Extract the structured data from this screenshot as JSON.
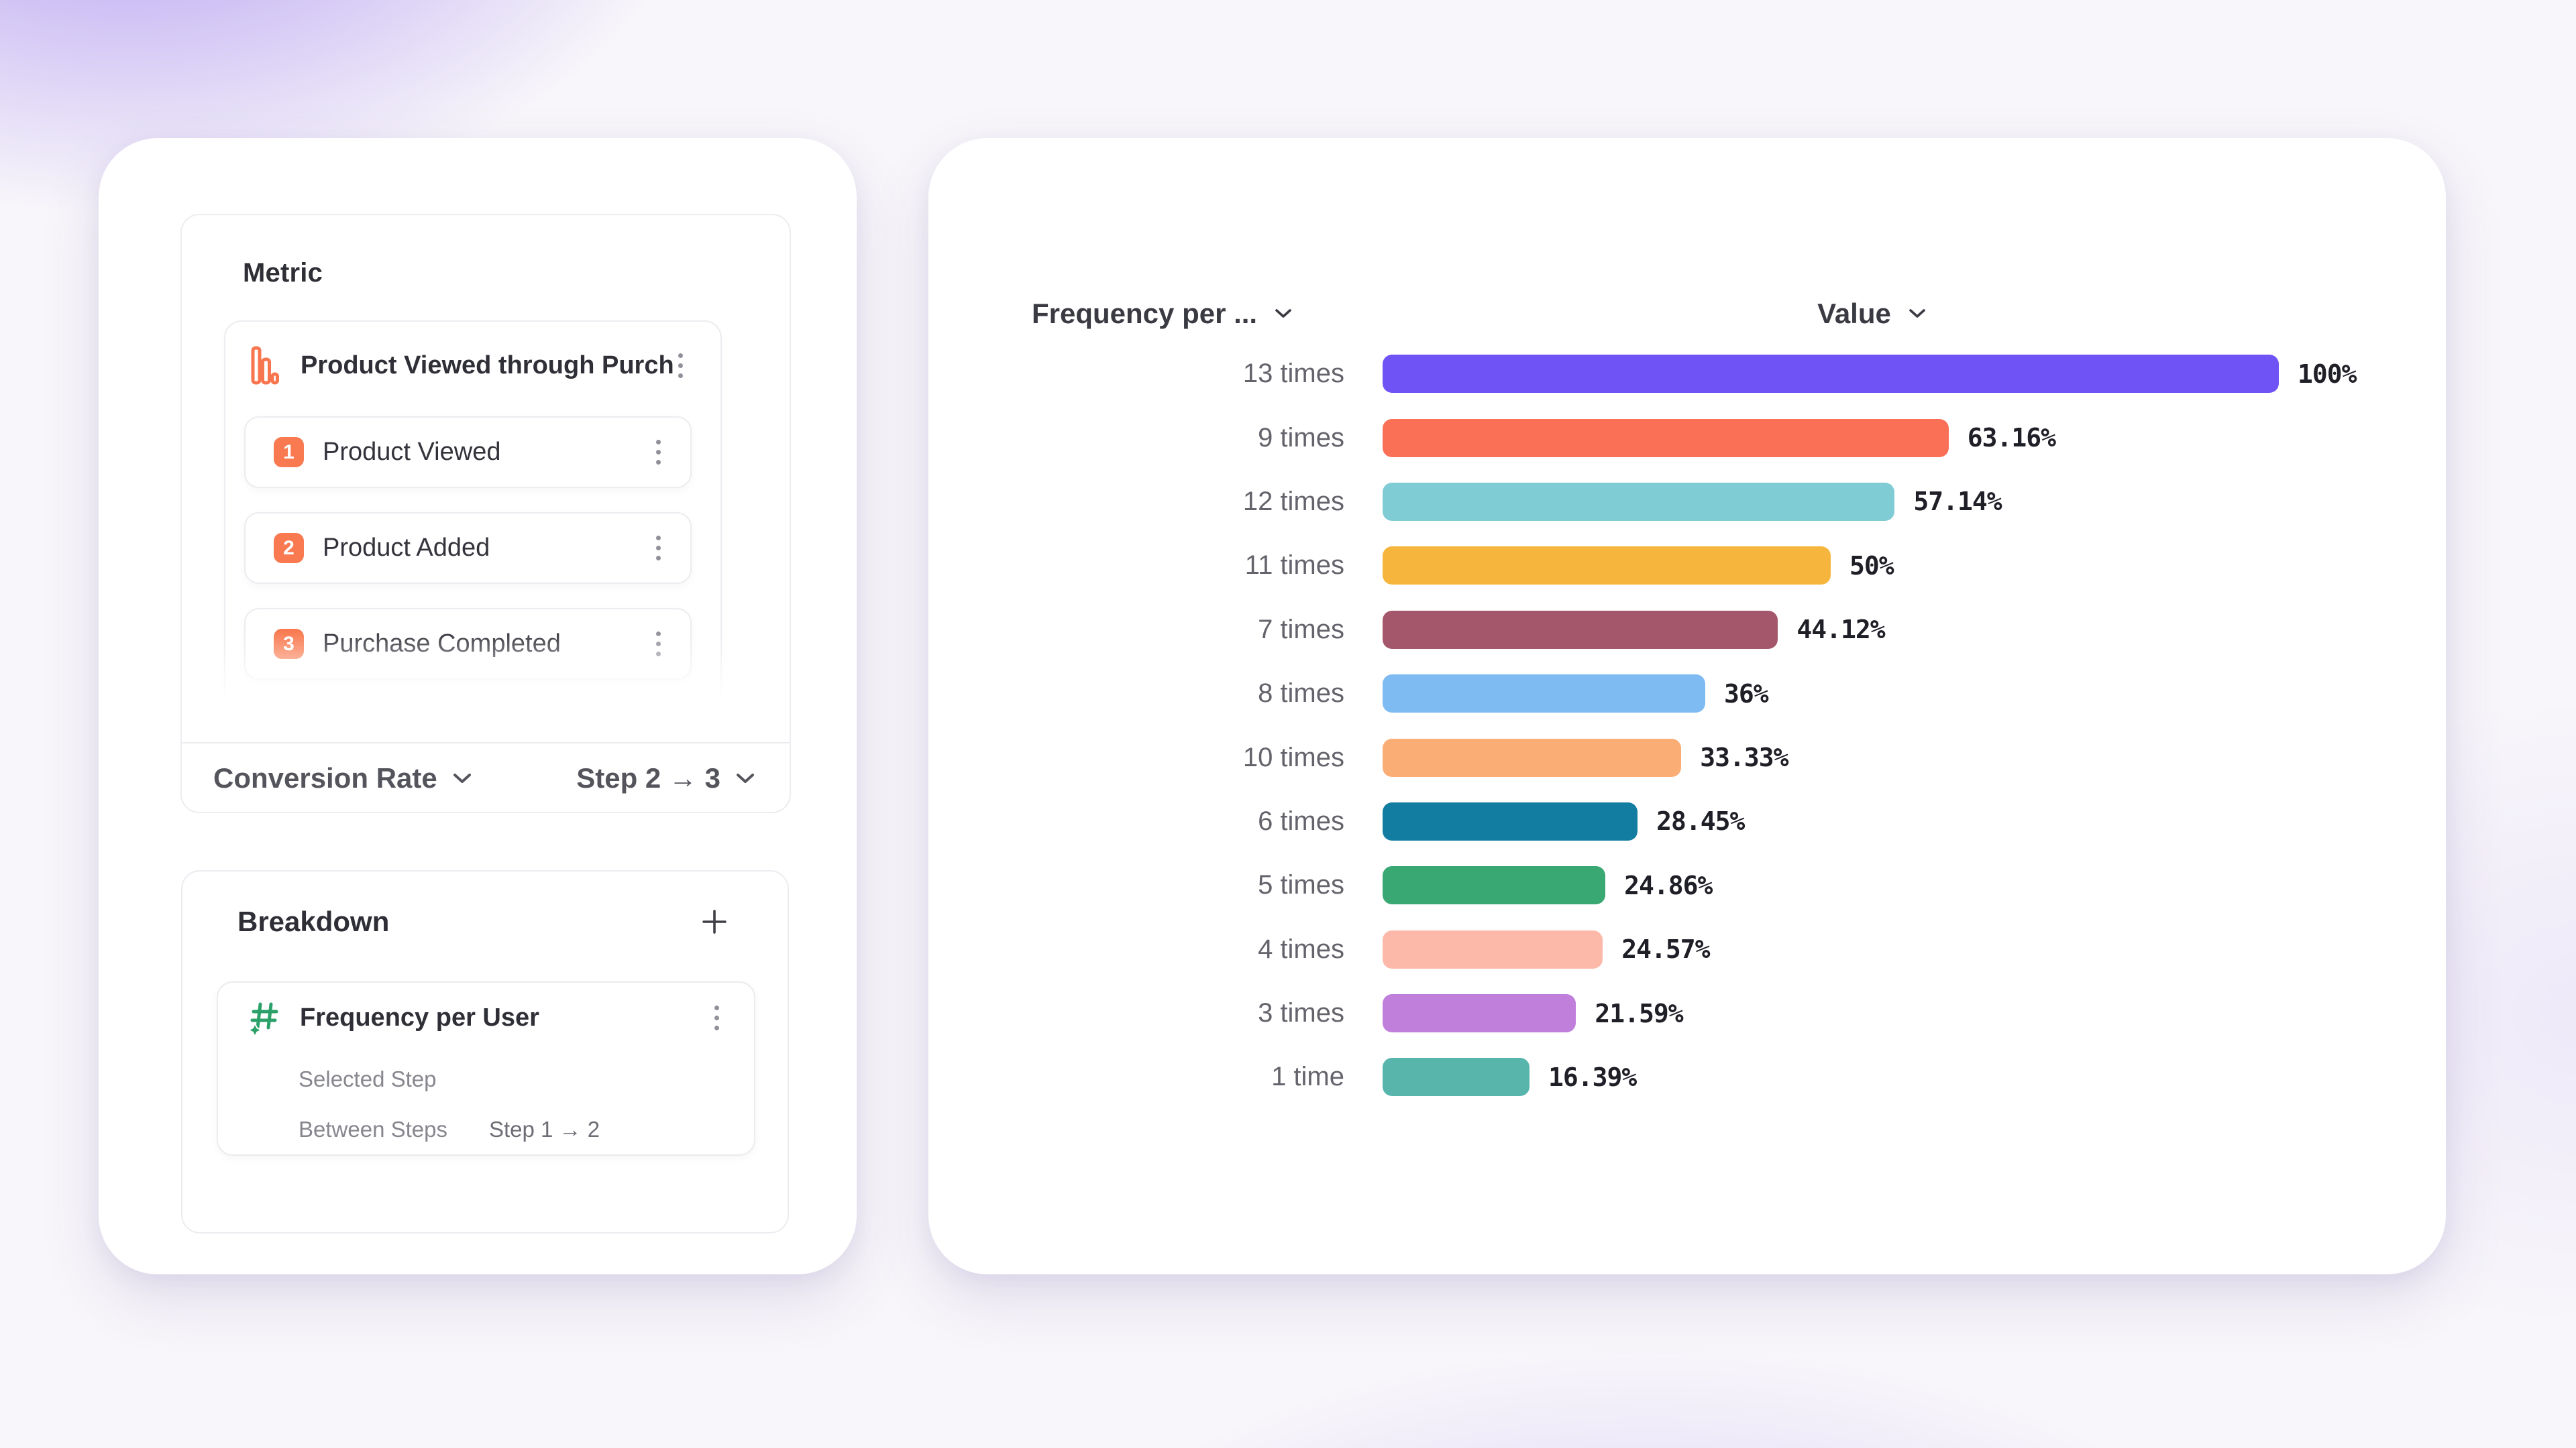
{
  "theme": {
    "accent_coral": "#F97A50",
    "accent_green": "#2BA169",
    "card_background": "#FFFFFF",
    "border": "#ECECF1",
    "text_dark": "#2F2F37",
    "text_gray": "#54545C",
    "text_light_gray": "#86868E"
  },
  "metric_section": {
    "title": "Metric",
    "funnel": {
      "icon": "bar-chart-icon",
      "title": "Product Viewed through Purch...",
      "steps": [
        {
          "number": "1",
          "label": "Product Viewed"
        },
        {
          "number": "2",
          "label": "Product Added"
        },
        {
          "number": "3",
          "label": "Purchase Completed"
        }
      ]
    },
    "footer": {
      "measure_label": "Conversion Rate",
      "step_range_label": "Step 2 → 3"
    }
  },
  "breakdown_section": {
    "title": "Breakdown",
    "add_button": "+",
    "item": {
      "icon": "hash-sparkle-icon",
      "title": "Frequency per User",
      "properties": [
        {
          "label": "Selected Step",
          "value": ""
        },
        {
          "label": "Between Steps",
          "value": "Step 1 → 2"
        }
      ]
    }
  },
  "chart": {
    "category_header": "Frequency per ...",
    "value_header": "Value"
  },
  "chart_data": {
    "type": "bar",
    "orientation": "horizontal",
    "title": "",
    "xlabel": "Value",
    "ylabel": "Frequency per User",
    "xlim": [
      0,
      100
    ],
    "grid": false,
    "categories": [
      "13 times",
      "9 times",
      "12 times",
      "11 times",
      "7 times",
      "8 times",
      "10 times",
      "6 times",
      "5 times",
      "4 times",
      "3 times",
      "1 time"
    ],
    "values": [
      100,
      63.16,
      57.14,
      50,
      44.12,
      36,
      33.33,
      28.45,
      24.86,
      24.57,
      21.59,
      16.39
    ],
    "value_labels": [
      "100%",
      "63.16%",
      "57.14%",
      "50%",
      "44.12%",
      "36%",
      "33.33%",
      "28.45%",
      "24.86%",
      "24.57%",
      "21.59%",
      "16.39%"
    ],
    "bar_colors": [
      "#6F53F5",
      "#FA7057",
      "#80CCD4",
      "#F6B53C",
      "#A4566B",
      "#7DBBF2",
      "#FBAD76",
      "#137DA1",
      "#3AA873",
      "#FCB8A9",
      "#C17FDC",
      "#57B5AC"
    ]
  }
}
